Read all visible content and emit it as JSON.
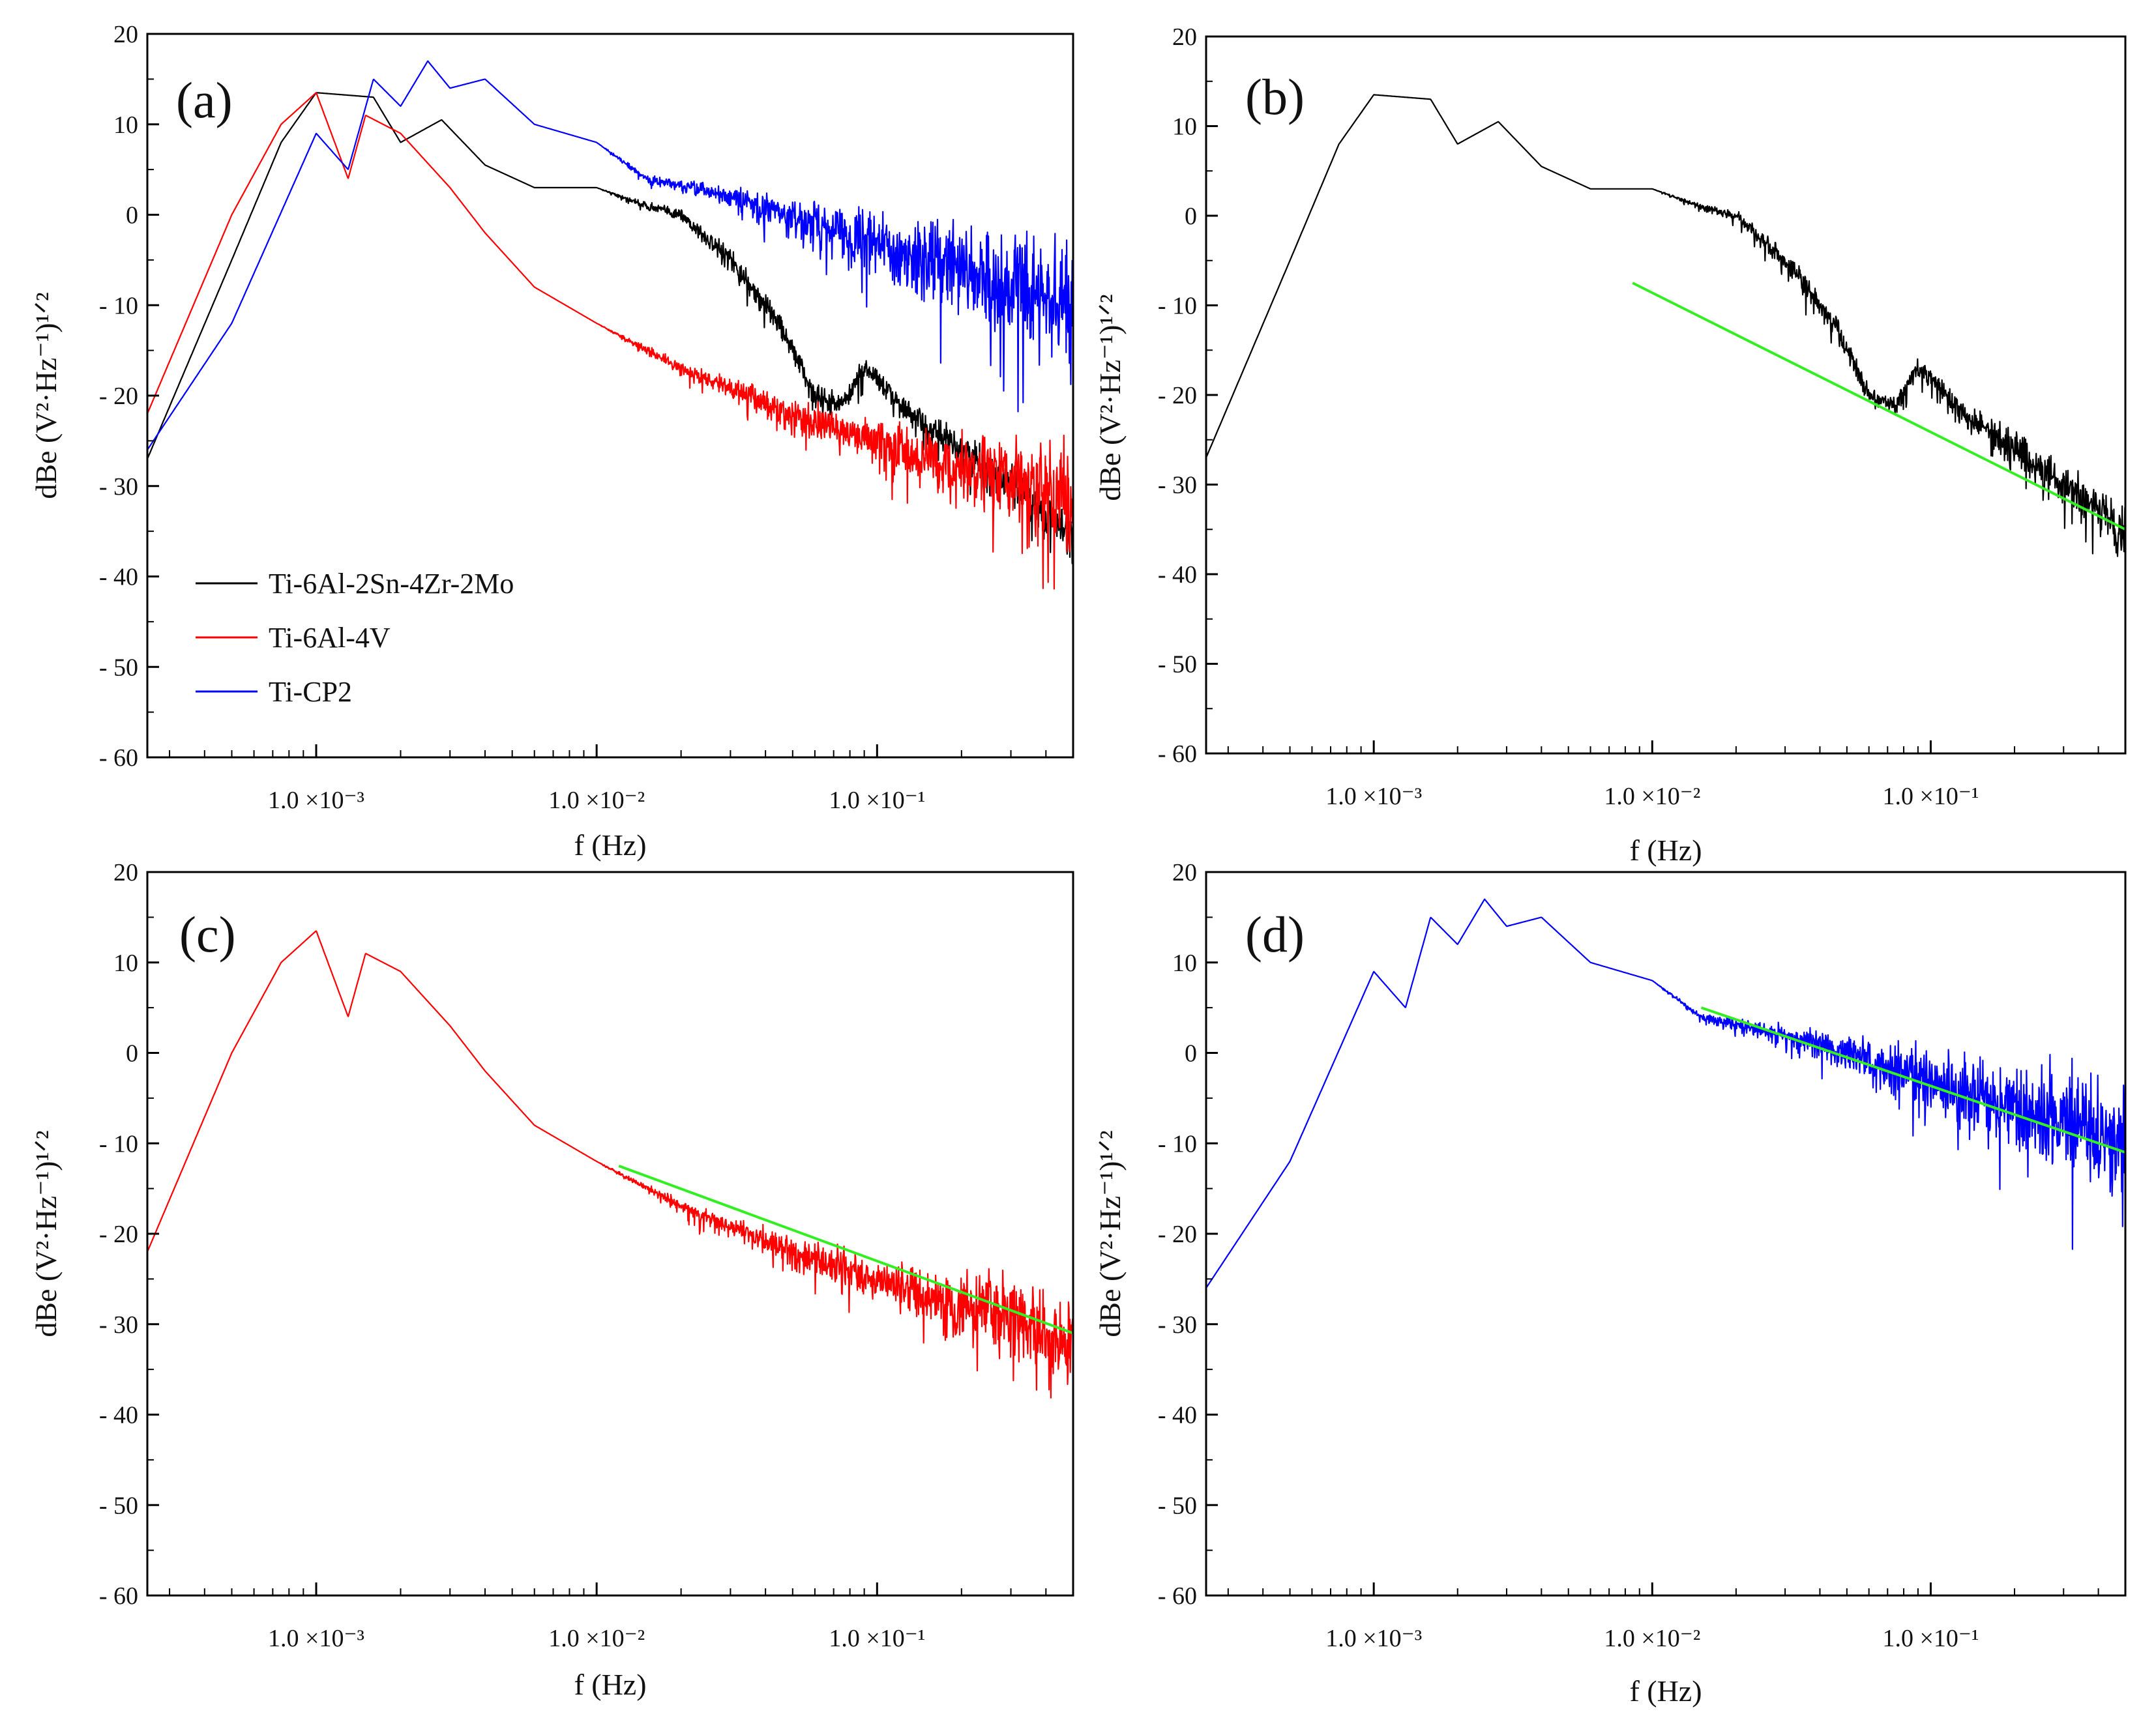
{
  "chart_data": [
    {
      "panel": "a",
      "panel_label": "(a)",
      "type": "line",
      "x_scale": "log",
      "xlim": [
        0.00025,
        0.5
      ],
      "ylim": [
        -60,
        20
      ],
      "xlabel": "f (Hz)",
      "ylabel": "dBe (V²·Hz⁻¹)¹ᐟ²",
      "x_ticks": [
        {
          "value": 0.001,
          "label": "1.0 ×10⁻³"
        },
        {
          "value": 0.01,
          "label": "1.0 ×10⁻²"
        },
        {
          "value": 0.1,
          "label": "1.0 ×10⁻¹"
        }
      ],
      "y_ticks": [
        {
          "value": 20,
          "label": "20"
        },
        {
          "value": 10,
          "label": "10"
        },
        {
          "value": 0,
          "label": "0"
        },
        {
          "value": -10,
          "label": "- 10"
        },
        {
          "value": -20,
          "label": "- 20"
        },
        {
          "value": -30,
          "label": "- 30"
        },
        {
          "value": -40,
          "label": "- 40"
        },
        {
          "value": -50,
          "label": "- 50"
        },
        {
          "value": -60,
          "label": "- 60"
        }
      ],
      "legend": [
        {
          "name": "Ti-6Al-2Sn-4Zr-2Mo",
          "color": "#000000"
        },
        {
          "name": "Ti-6Al-4V",
          "color": "#ff0000"
        },
        {
          "name": "Ti-CP2",
          "color": "#0000ff"
        }
      ],
      "series": [
        {
          "name": "Ti-6Al-2Sn-4Zr-2Mo",
          "color": "#000000",
          "noise": [
            0,
            0,
            0,
            0,
            0,
            1,
            1,
            2,
            3,
            5,
            7,
            10,
            14
          ],
          "x": [
            0.00025,
            0.0005,
            0.00075,
            0.001,
            0.0016,
            0.002,
            0.0028,
            0.004,
            0.006,
            0.01,
            0.015,
            0.02,
            0.03,
            0.045,
            0.06,
            0.075,
            0.09,
            0.1,
            0.13,
            0.2,
            0.3,
            0.5
          ],
          "y": [
            -27,
            -5,
            8,
            13.5,
            13,
            8,
            10.5,
            5.5,
            3,
            3,
            1,
            0,
            -5,
            -12,
            -20,
            -21,
            -17,
            -18,
            -22,
            -26,
            -30,
            -35
          ]
        },
        {
          "name": "Ti-6Al-4V",
          "color": "#ff0000",
          "noise": [
            0,
            0,
            0,
            0,
            0,
            1,
            2,
            4,
            6,
            8,
            10,
            12,
            13
          ],
          "x": [
            0.00025,
            0.0005,
            0.00075,
            0.001,
            0.0013,
            0.0015,
            0.002,
            0.003,
            0.004,
            0.006,
            0.01,
            0.02,
            0.05,
            0.1,
            0.2,
            0.5
          ],
          "y": [
            -22,
            0,
            10,
            13.5,
            4,
            11,
            9,
            3,
            -2,
            -8,
            -12,
            -17,
            -22,
            -25,
            -28,
            -31
          ]
        },
        {
          "name": "Ti-CP2",
          "color": "#0000ff",
          "noise": [
            0,
            0,
            0,
            0,
            0,
            1,
            3,
            5,
            7,
            8,
            9,
            10,
            11
          ],
          "x": [
            0.00025,
            0.0005,
            0.001,
            0.0013,
            0.0016,
            0.002,
            0.0025,
            0.003,
            0.004,
            0.006,
            0.01,
            0.015,
            0.03,
            0.1,
            0.5
          ],
          "y": [
            -26,
            -12,
            9,
            5,
            15,
            12,
            17,
            14,
            15,
            10,
            8,
            4,
            2,
            -3,
            -10
          ]
        }
      ]
    },
    {
      "panel": "b",
      "panel_label": "(b)",
      "type": "line",
      "x_scale": "log",
      "xlim": [
        0.00025,
        0.5
      ],
      "ylim": [
        -60,
        20
      ],
      "xlabel": "f (Hz)",
      "ylabel": "dBe (V²·Hz⁻¹)¹ᐟ²",
      "x_ticks": [
        {
          "value": 0.001,
          "label": "1.0 ×10⁻³"
        },
        {
          "value": 0.01,
          "label": "1.0 ×10⁻²"
        },
        {
          "value": 0.1,
          "label": "1.0 ×10⁻¹"
        }
      ],
      "y_ticks": [
        {
          "value": 20,
          "label": "20"
        },
        {
          "value": 10,
          "label": "10"
        },
        {
          "value": 0,
          "label": "0"
        },
        {
          "value": -10,
          "label": "- 10"
        },
        {
          "value": -20,
          "label": "- 20"
        },
        {
          "value": -30,
          "label": "- 30"
        },
        {
          "value": -40,
          "label": "- 40"
        },
        {
          "value": -50,
          "label": "- 50"
        },
        {
          "value": -60,
          "label": "- 60"
        }
      ],
      "series": [
        {
          "name": "Ti-6Al-2Sn-4Zr-2Mo",
          "color": "#000000",
          "noise": [
            0,
            0,
            0,
            0,
            0,
            1,
            1,
            2,
            3,
            5,
            7,
            10,
            14
          ],
          "x": [
            0.00025,
            0.0005,
            0.00075,
            0.001,
            0.0016,
            0.002,
            0.0028,
            0.004,
            0.006,
            0.01,
            0.015,
            0.02,
            0.03,
            0.045,
            0.06,
            0.075,
            0.09,
            0.1,
            0.13,
            0.2,
            0.3,
            0.5
          ],
          "y": [
            -27,
            -5,
            8,
            13.5,
            13,
            8,
            10.5,
            5.5,
            3,
            3,
            1,
            0,
            -5,
            -12,
            -20,
            -21,
            -17,
            -18,
            -22,
            -26,
            -30,
            -35
          ]
        }
      ],
      "fit_line": {
        "x": [
          0.0085,
          0.5
        ],
        "y": [
          -7.5,
          -35
        ],
        "color": "#33ee22"
      }
    },
    {
      "panel": "c",
      "panel_label": "(c)",
      "type": "line",
      "x_scale": "log",
      "xlim": [
        0.00025,
        0.5
      ],
      "ylim": [
        -60,
        20
      ],
      "xlabel": "f (Hz)",
      "ylabel": "dBe (V²·Hz⁻¹)¹ᐟ²",
      "x_ticks": [
        {
          "value": 0.001,
          "label": "1.0 ×10⁻³"
        },
        {
          "value": 0.01,
          "label": "1.0 ×10⁻²"
        },
        {
          "value": 0.1,
          "label": "1.0 ×10⁻¹"
        }
      ],
      "y_ticks": [
        {
          "value": 20,
          "label": "20"
        },
        {
          "value": 10,
          "label": "10"
        },
        {
          "value": 0,
          "label": "0"
        },
        {
          "value": -10,
          "label": "- 10"
        },
        {
          "value": -20,
          "label": "- 20"
        },
        {
          "value": -30,
          "label": "- 30"
        },
        {
          "value": -40,
          "label": "- 40"
        },
        {
          "value": -50,
          "label": "- 50"
        },
        {
          "value": -60,
          "label": "- 60"
        }
      ],
      "series": [
        {
          "name": "Ti-6Al-4V",
          "color": "#ff0000",
          "noise": [
            0,
            0,
            0,
            0,
            0,
            1,
            2,
            4,
            6,
            8,
            10,
            12,
            13
          ],
          "x": [
            0.00025,
            0.0005,
            0.00075,
            0.001,
            0.0013,
            0.0015,
            0.002,
            0.003,
            0.004,
            0.006,
            0.01,
            0.02,
            0.05,
            0.1,
            0.2,
            0.5
          ],
          "y": [
            -22,
            0,
            10,
            13.5,
            4,
            11,
            9,
            3,
            -2,
            -8,
            -12,
            -17,
            -22,
            -25,
            -28,
            -31
          ]
        }
      ],
      "fit_line": {
        "x": [
          0.012,
          0.5
        ],
        "y": [
          -12.5,
          -31
        ],
        "color": "#33ee22"
      }
    },
    {
      "panel": "d",
      "panel_label": "(d)",
      "type": "line",
      "x_scale": "log",
      "xlim": [
        0.00025,
        0.5
      ],
      "ylim": [
        -60,
        20
      ],
      "xlabel": "f (Hz)",
      "ylabel": "dBe (V²·Hz⁻¹)¹ᐟ²",
      "x_ticks": [
        {
          "value": 0.001,
          "label": "1.0 ×10⁻³"
        },
        {
          "value": 0.01,
          "label": "1.0 ×10⁻²"
        },
        {
          "value": 0.1,
          "label": "1.0 ×10⁻¹"
        }
      ],
      "y_ticks": [
        {
          "value": 20,
          "label": "20"
        },
        {
          "value": 10,
          "label": "10"
        },
        {
          "value": 0,
          "label": "0"
        },
        {
          "value": -10,
          "label": "- 10"
        },
        {
          "value": -20,
          "label": "- 20"
        },
        {
          "value": -30,
          "label": "- 30"
        },
        {
          "value": -40,
          "label": "- 40"
        },
        {
          "value": -50,
          "label": "- 50"
        },
        {
          "value": -60,
          "label": "- 60"
        }
      ],
      "series": [
        {
          "name": "Ti-CP2",
          "color": "#0000ff",
          "noise": [
            0,
            0,
            0,
            0,
            0,
            1,
            3,
            5,
            7,
            8,
            9,
            10,
            11
          ],
          "x": [
            0.00025,
            0.0005,
            0.001,
            0.0013,
            0.0016,
            0.002,
            0.0025,
            0.003,
            0.004,
            0.006,
            0.01,
            0.015,
            0.03,
            0.1,
            0.5
          ],
          "y": [
            -26,
            -12,
            9,
            5,
            15,
            12,
            17,
            14,
            15,
            10,
            8,
            4,
            2,
            -3,
            -10
          ]
        }
      ],
      "fit_line": {
        "x": [
          0.015,
          0.5
        ],
        "y": [
          5,
          -11
        ],
        "color": "#33ee22"
      }
    }
  ]
}
